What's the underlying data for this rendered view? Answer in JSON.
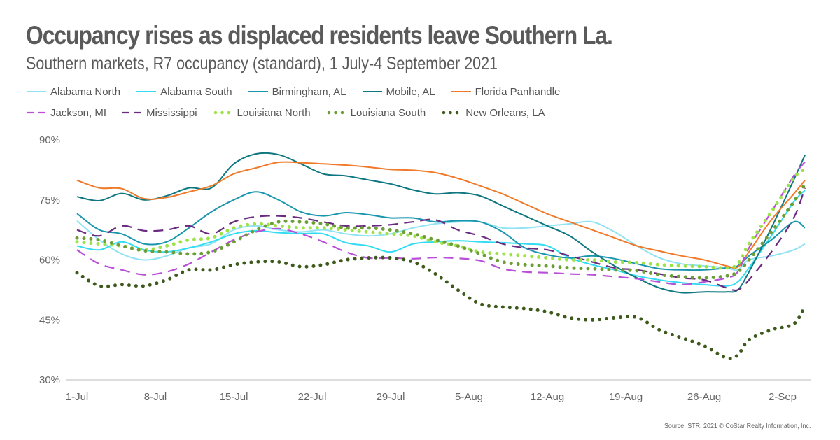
{
  "header": {
    "title": "Occupancy rises as displaced residents leave Southern La.",
    "subtitle": "Southern markets, R7 occupancy (standard), 1 July-4 September 2021"
  },
  "footer": {
    "source": "Source: STR. 2021 © CoStar Realty Information, Inc."
  },
  "chart_data": {
    "type": "line",
    "title": "Occupancy rises as displaced residents leave Southern La.",
    "subtitle": "Southern markets, R7 occupancy (standard), 1 July-4 September 2021",
    "xlabel": "",
    "ylabel": "",
    "x_unit": "days since 1-Jul-2021",
    "x": [
      0,
      2,
      4,
      6,
      8,
      10,
      12,
      14,
      16,
      18,
      20,
      22,
      24,
      26,
      28,
      30,
      32,
      34,
      36,
      38,
      40,
      42,
      44,
      46,
      48,
      50,
      52,
      54,
      56,
      58,
      59,
      60,
      62,
      64,
      65
    ],
    "xlim": [
      0,
      65
    ],
    "x_ticks": [
      {
        "day": 0,
        "label": "1-Jul"
      },
      {
        "day": 7,
        "label": "8-Jul"
      },
      {
        "day": 14,
        "label": "15-Jul"
      },
      {
        "day": 21,
        "label": "22-Jul"
      },
      {
        "day": 28,
        "label": "29-Jul"
      },
      {
        "day": 35,
        "label": "5-Aug"
      },
      {
        "day": 42,
        "label": "12-Aug"
      },
      {
        "day": 49,
        "label": "19-Aug"
      },
      {
        "day": 56,
        "label": "26-Aug"
      },
      {
        "day": 63,
        "label": "2-Sep"
      }
    ],
    "ylim": [
      30,
      90
    ],
    "y_ticks": [
      {
        "value": 90,
        "label": "90%"
      },
      {
        "value": 75,
        "label": "75%"
      },
      {
        "value": 60,
        "label": "60%"
      },
      {
        "value": 45,
        "label": "45%"
      },
      {
        "value": 30,
        "label": "30%"
      }
    ],
    "grid": false,
    "legend_position": "top-left",
    "series": [
      {
        "name": "Alabama North",
        "color": "#8fe3f5",
        "style": "solid",
        "values": [
          69.8,
          65,
          61.5,
          60,
          61,
          63,
          64,
          67.5,
          68.5,
          67.5,
          67,
          67.5,
          66.5,
          66,
          66.5,
          68,
          69,
          69.5,
          69.5,
          68,
          68,
          68.5,
          69,
          69.5,
          67,
          63.5,
          60.5,
          59,
          58.5,
          58,
          57.5,
          60,
          61,
          62.5,
          64
        ]
      },
      {
        "name": "Alabama South",
        "color": "#33dcf2",
        "style": "solid",
        "values": [
          63.5,
          62.5,
          64.5,
          62.5,
          62,
          63,
          64.5,
          66.5,
          67.3,
          66.8,
          66.6,
          66.5,
          64.3,
          63.5,
          62,
          64,
          64.5,
          64.8,
          64.5,
          64.3,
          64,
          63.5,
          60.5,
          58.8,
          57.5,
          56,
          55,
          54.3,
          53.8,
          53.5,
          54.5,
          58,
          66,
          74.5,
          77.4
        ]
      },
      {
        "name": "Birmingham, AL",
        "color": "#1995ae",
        "style": "solid",
        "values": [
          71.6,
          67.5,
          66.5,
          64,
          64.5,
          68,
          72,
          75,
          77,
          75,
          72,
          71,
          71.8,
          71.3,
          70.5,
          70.5,
          69.5,
          69.8,
          69.5,
          67,
          63,
          61.3,
          60.5,
          61,
          60.3,
          59,
          57.8,
          57.5,
          57.5,
          58,
          58.5,
          61,
          65,
          69.5,
          68
        ]
      },
      {
        "name": "Mobile, AL",
        "color": "#0e7780",
        "style": "solid",
        "values": [
          75.8,
          74.8,
          76.6,
          75,
          76,
          78,
          78,
          84,
          86.5,
          86.3,
          84,
          81.5,
          81,
          80,
          79,
          77.5,
          76.5,
          76.8,
          76,
          73.5,
          71,
          68.5,
          66,
          62,
          58.5,
          55.5,
          53,
          51.8,
          52,
          52,
          52.5,
          57,
          68,
          80,
          86.2
        ]
      },
      {
        "name": "Florida Panhandle",
        "color": "#f07a2a",
        "style": "solid",
        "values": [
          79.9,
          78,
          77.8,
          75.3,
          75.6,
          77,
          78.5,
          81.5,
          83,
          84.4,
          84.3,
          84,
          83.7,
          83.2,
          82.6,
          82.4,
          81.8,
          80.4,
          78.5,
          76.5,
          74,
          71.5,
          69.5,
          67.5,
          65.5,
          63.5,
          62.2,
          61,
          60,
          58.5,
          58.2,
          62,
          70,
          76.5,
          79.9
        ]
      },
      {
        "name": "Jackson, MI",
        "color": "#b94fd9",
        "style": "dashed",
        "values": [
          62.5,
          59,
          57.5,
          56.3,
          57,
          59,
          62,
          65,
          67,
          67.8,
          66.5,
          64.5,
          62,
          60.5,
          60.5,
          60.3,
          60.6,
          60.4,
          59.8,
          57.8,
          57,
          56.8,
          56.5,
          56.3,
          55.8,
          55.3,
          54.5,
          53.8,
          54.5,
          55.5,
          57,
          63,
          72,
          81,
          84.5
        ]
      },
      {
        "name": "Mississippi",
        "color": "#6a2a80",
        "style": "dashed",
        "values": [
          67.5,
          66,
          68.5,
          67.3,
          67.5,
          68.5,
          66.5,
          69.5,
          70.8,
          71,
          70.5,
          69.5,
          68.5,
          68.5,
          68.8,
          69.5,
          70,
          67.5,
          66,
          64,
          63,
          62.5,
          61,
          59.5,
          58,
          57.5,
          56.5,
          55.5,
          55,
          53,
          52.5,
          55,
          62,
          70.5,
          78
        ]
      },
      {
        "name": "Louisiana North",
        "color": "#9ee24a",
        "style": "dotted",
        "values": [
          64.5,
          64,
          63.5,
          62.5,
          63.5,
          65,
          65.5,
          68,
          69,
          68.5,
          68,
          68,
          67.5,
          67,
          66.5,
          66,
          64.5,
          63.5,
          62,
          61.5,
          61,
          60.5,
          60,
          60,
          59.5,
          59.3,
          58.8,
          58.5,
          58.3,
          58,
          59,
          64,
          72,
          80.5,
          82.7
        ]
      },
      {
        "name": "Louisiana South",
        "color": "#6b9e35",
        "style": "dotted",
        "values": [
          65.5,
          65,
          63.5,
          62.3,
          62,
          61.5,
          62,
          64.5,
          67.5,
          69.5,
          69.5,
          69,
          68,
          68,
          67.5,
          66.5,
          65,
          63.5,
          61.5,
          59.5,
          58.8,
          58.5,
          58,
          57.8,
          57.5,
          57.3,
          56.3,
          55.8,
          55.5,
          56,
          57,
          60,
          67,
          74.5,
          79
        ]
      },
      {
        "name": "New Orleans, LA",
        "color": "#3d5a1c",
        "style": "dotted",
        "values": [
          56.8,
          53.5,
          53.8,
          53.5,
          55,
          57.5,
          57.5,
          58.8,
          59.5,
          59.5,
          58.3,
          58.8,
          60,
          60.5,
          60.5,
          59.5,
          56.5,
          52.5,
          49,
          48.2,
          47.8,
          47,
          45.5,
          45,
          45.5,
          45.6,
          42.5,
          40.5,
          38.5,
          35.5,
          36.2,
          40,
          42.5,
          44,
          48.5
        ]
      }
    ]
  }
}
